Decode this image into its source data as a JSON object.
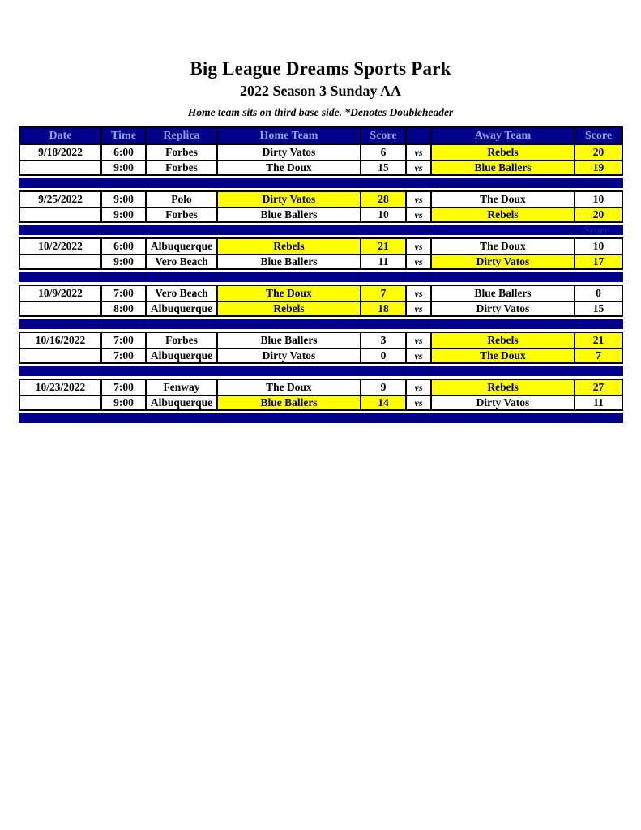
{
  "page": {
    "title": "Big League Dreams Sports Park",
    "subtitle": "2022 Season 3 Sunday AA",
    "note": "Home team sits on third base side.  *Denotes Doubleheader"
  },
  "colors": {
    "navy": "#00008B",
    "yellow": "#FFFF00",
    "header_text": "#8FA3E0"
  },
  "table": {
    "headers": [
      "Date",
      "Time",
      "Replica",
      "Home Team",
      "Score",
      "",
      "Away Team",
      "Score"
    ],
    "vs_label": "vs",
    "groups": [
      {
        "date": "9/18/2022",
        "games": [
          {
            "time": "6:00",
            "replica": "Forbes",
            "home": "Dirty Vatos",
            "home_score": "6",
            "away": "Rebels",
            "away_score": "20",
            "winner": "away"
          },
          {
            "time": "9:00",
            "replica": "Forbes",
            "home": "The Doux",
            "home_score": "15",
            "away": "Blue Ballers",
            "away_score": "19",
            "winner": "away"
          }
        ],
        "separator_ghost": ""
      },
      {
        "date": "9/25/2022",
        "games": [
          {
            "time": "9:00",
            "replica": "Polo",
            "home": "Dirty Vatos",
            "home_score": "28",
            "away": "The Doux",
            "away_score": "10",
            "winner": "home"
          },
          {
            "time": "9:00",
            "replica": "Forbes",
            "home": "Blue Ballers",
            "home_score": "10",
            "away": "Rebels",
            "away_score": "20",
            "winner": "away"
          }
        ],
        "separator_ghost": "Score"
      },
      {
        "date": "10/2/2022",
        "games": [
          {
            "time": "6:00",
            "replica": "Albuquerque",
            "home": "Rebels",
            "home_score": "21",
            "away": "The Doux",
            "away_score": "10",
            "winner": "home"
          },
          {
            "time": "9:00",
            "replica": "Vero Beach",
            "home": "Blue Ballers",
            "home_score": "11",
            "away": "Dirty Vatos",
            "away_score": "17",
            "winner": "away"
          }
        ],
        "separator_ghost": ""
      },
      {
        "date": "10/9/2022",
        "games": [
          {
            "time": "7:00",
            "replica": "Vero Beach",
            "home": "The Doux",
            "home_score": "7",
            "away": "Blue Ballers",
            "away_score": "0",
            "winner": "home"
          },
          {
            "time": "8:00",
            "replica": "Albuquerque",
            "home": "Rebels",
            "home_score": "18",
            "away": "Dirty Vatos",
            "away_score": "15",
            "winner": "home"
          }
        ],
        "separator_ghost": ""
      },
      {
        "date": "10/16/2022",
        "games": [
          {
            "time": "7:00",
            "replica": "Forbes",
            "home": "Blue Ballers",
            "home_score": "3",
            "away": "Rebels",
            "away_score": "21",
            "winner": "away"
          },
          {
            "time": "7:00",
            "replica": "Albuquerque",
            "home": "Dirty Vatos",
            "home_score": "0",
            "away": "The Doux",
            "away_score": "7",
            "winner": "away"
          }
        ],
        "separator_ghost": ""
      },
      {
        "date": "10/23/2022",
        "games": [
          {
            "time": "7:00",
            "replica": "Fenway",
            "home": "The Doux",
            "home_score": "9",
            "away": "Rebels",
            "away_score": "27",
            "winner": "away"
          },
          {
            "time": "9:00",
            "replica": "Albuquerque",
            "home": "Blue Ballers",
            "home_score": "14",
            "away": "Dirty Vatos",
            "away_score": "11",
            "winner": "home"
          }
        ],
        "separator_ghost": ""
      }
    ]
  }
}
